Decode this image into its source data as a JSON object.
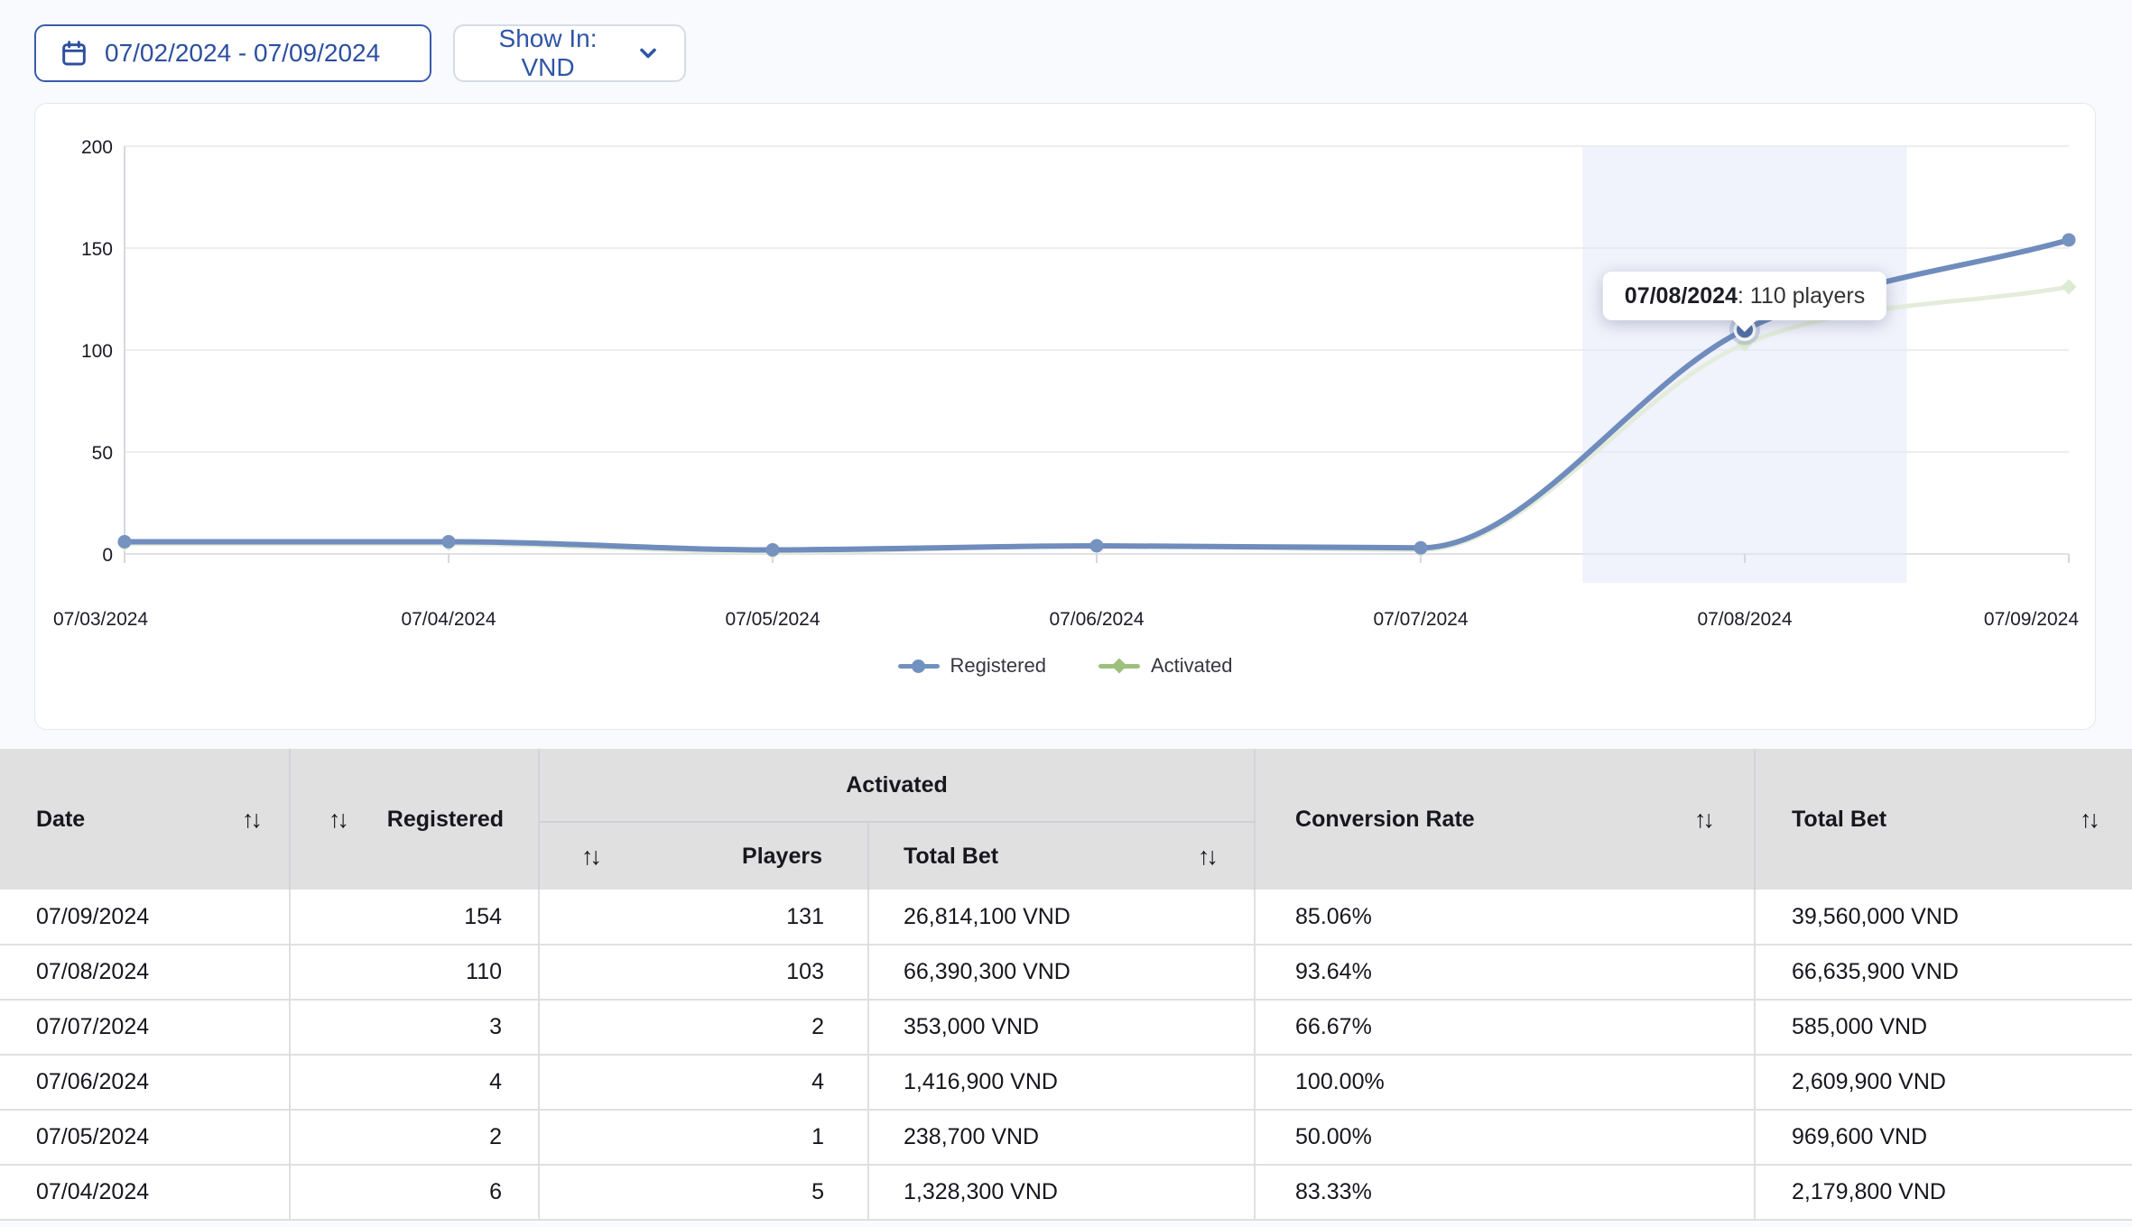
{
  "toolbar": {
    "date_range": "07/02/2024 - 07/09/2024",
    "show_in_label": "Show In: VND"
  },
  "icons": {
    "sort": "↑↓"
  },
  "chart_data": {
    "type": "line",
    "x": [
      "07/03/2024",
      "07/04/2024",
      "07/05/2024",
      "07/06/2024",
      "07/07/2024",
      "07/08/2024",
      "07/09/2024"
    ],
    "series": [
      {
        "name": "Registered",
        "values": [
          6,
          6,
          2,
          4,
          3,
          110,
          154
        ],
        "color": "#6f8cbd",
        "legend_color": "#7191bf",
        "marker": "circle"
      },
      {
        "name": "Activated",
        "values": [
          5,
          5,
          1,
          4,
          2,
          103,
          131
        ],
        "color": "#e4eddb",
        "legend_color": "#9dc17d",
        "marker": "diamond"
      }
    ],
    "ylim": [
      0,
      200
    ],
    "yticks": [
      0,
      50,
      100,
      150,
      200
    ],
    "grid": true,
    "legend_position": "bottom",
    "highlight_band_x": "07/08/2024",
    "highlight_band_color": "rgba(228,231,250,0.55)",
    "active_point": {
      "series": "Registered",
      "x": "07/08/2024",
      "value": 110
    },
    "tooltip": {
      "date": "07/08/2024",
      "text": ": 110 players"
    }
  },
  "table": {
    "header": {
      "date": "Date",
      "registered": "Registered",
      "activated_group": "Activated",
      "players": "Players",
      "activated_total_bet": "Total Bet",
      "conversion_rate": "Conversion Rate",
      "total_bet": "Total Bet"
    },
    "rows": [
      {
        "date": "07/09/2024",
        "registered": "154",
        "players": "131",
        "activated_total_bet": "26,814,100 VND",
        "conversion_rate": "85.06%",
        "total_bet": "39,560,000 VND"
      },
      {
        "date": "07/08/2024",
        "registered": "110",
        "players": "103",
        "activated_total_bet": "66,390,300 VND",
        "conversion_rate": "93.64%",
        "total_bet": "66,635,900 VND"
      },
      {
        "date": "07/07/2024",
        "registered": "3",
        "players": "2",
        "activated_total_bet": "353,000 VND",
        "conversion_rate": "66.67%",
        "total_bet": "585,000 VND"
      },
      {
        "date": "07/06/2024",
        "registered": "4",
        "players": "4",
        "activated_total_bet": "1,416,900 VND",
        "conversion_rate": "100.00%",
        "total_bet": "2,609,900 VND"
      },
      {
        "date": "07/05/2024",
        "registered": "2",
        "players": "1",
        "activated_total_bet": "238,700 VND",
        "conversion_rate": "50.00%",
        "total_bet": "969,600 VND"
      },
      {
        "date": "07/04/2024",
        "registered": "6",
        "players": "5",
        "activated_total_bet": "1,328,300 VND",
        "conversion_rate": "83.33%",
        "total_bet": "2,179,800 VND"
      }
    ]
  }
}
